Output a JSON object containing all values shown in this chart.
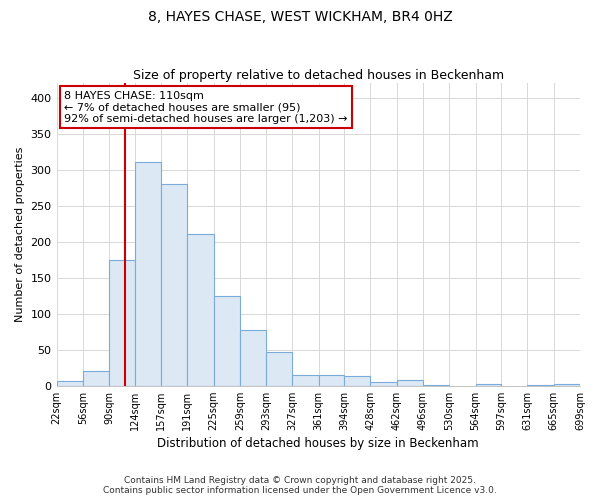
{
  "title": "8, HAYES CHASE, WEST WICKHAM, BR4 0HZ",
  "subtitle": "Size of property relative to detached houses in Beckenham",
  "xlabel": "Distribution of detached houses by size in Beckenham",
  "ylabel": "Number of detached properties",
  "bar_left_edges": [
    22,
    56,
    90,
    124,
    157,
    191,
    225,
    259,
    293,
    327,
    361,
    394,
    428,
    462,
    496,
    530,
    564,
    597,
    631,
    665
  ],
  "bar_widths": [
    34,
    34,
    34,
    33,
    34,
    34,
    34,
    34,
    34,
    34,
    33,
    34,
    34,
    34,
    34,
    34,
    33,
    34,
    34,
    34
  ],
  "bar_heights": [
    7,
    20,
    175,
    310,
    280,
    210,
    125,
    78,
    47,
    15,
    15,
    13,
    5,
    8,
    1,
    0,
    2,
    0,
    1,
    3
  ],
  "bar_color": "#dce9f5",
  "bar_edge_color": "#7aabdb",
  "property_size": 110,
  "vline_color": "#cc0000",
  "ylim": [
    0,
    420
  ],
  "yticks": [
    0,
    50,
    100,
    150,
    200,
    250,
    300,
    350,
    400
  ],
  "xtick_labels": [
    "22sqm",
    "56sqm",
    "90sqm",
    "124sqm",
    "157sqm",
    "191sqm",
    "225sqm",
    "259sqm",
    "293sqm",
    "327sqm",
    "361sqm",
    "394sqm",
    "428sqm",
    "462sqm",
    "496sqm",
    "530sqm",
    "564sqm",
    "597sqm",
    "631sqm",
    "665sqm",
    "699sqm"
  ],
  "annotation_line1": "8 HAYES CHASE: 110sqm",
  "annotation_line2": "← 7% of detached houses are smaller (95)",
  "annotation_line3": "92% of semi-detached houses are larger (1,203) →",
  "annotation_box_color": "#ffffff",
  "annotation_box_edgecolor": "#cc0000",
  "grid_color": "#d8d8d8",
  "background_color": "#ffffff",
  "fig_background_color": "#ffffff",
  "footnote1": "Contains HM Land Registry data © Crown copyright and database right 2025.",
  "footnote2": "Contains public sector information licensed under the Open Government Licence v3.0."
}
